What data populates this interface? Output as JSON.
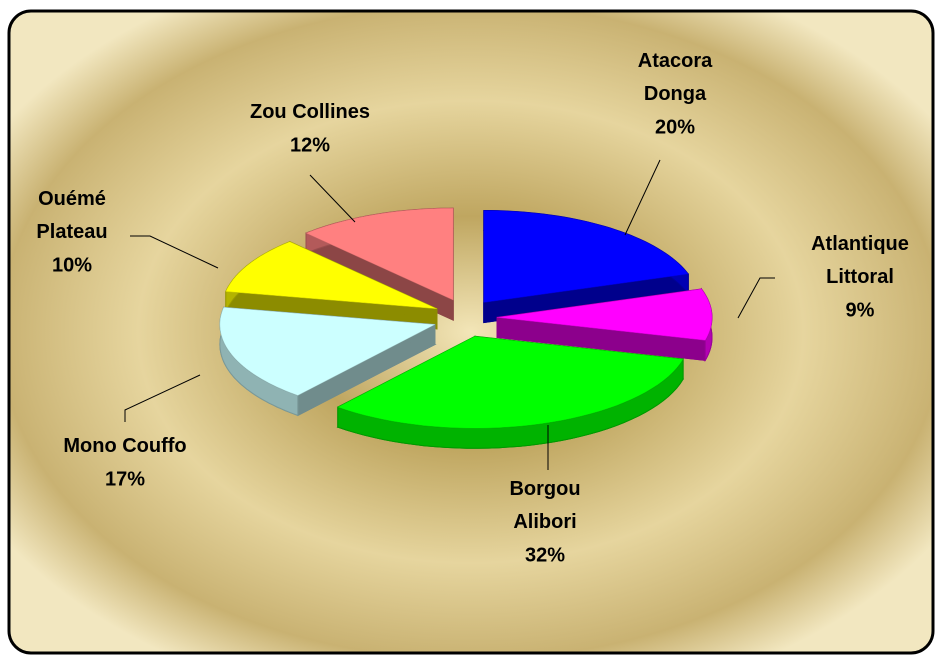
{
  "chart_data": {
    "type": "pie",
    "categories": [
      "Atacora Donga",
      "Atlantique Littoral",
      "Borgou Alibori",
      "Mono Couffo",
      "Ouémé Plateau",
      "Zou Collines"
    ],
    "values": [
      20,
      9,
      32,
      17,
      10,
      12
    ],
    "value_labels": [
      "20%",
      "9%",
      "32%",
      "17%",
      "10%",
      "12%"
    ],
    "colors": [
      "#0000ff",
      "#ff00ff",
      "#00ff00",
      "#ccffff",
      "#ffff00",
      "#ff8080"
    ]
  }
}
